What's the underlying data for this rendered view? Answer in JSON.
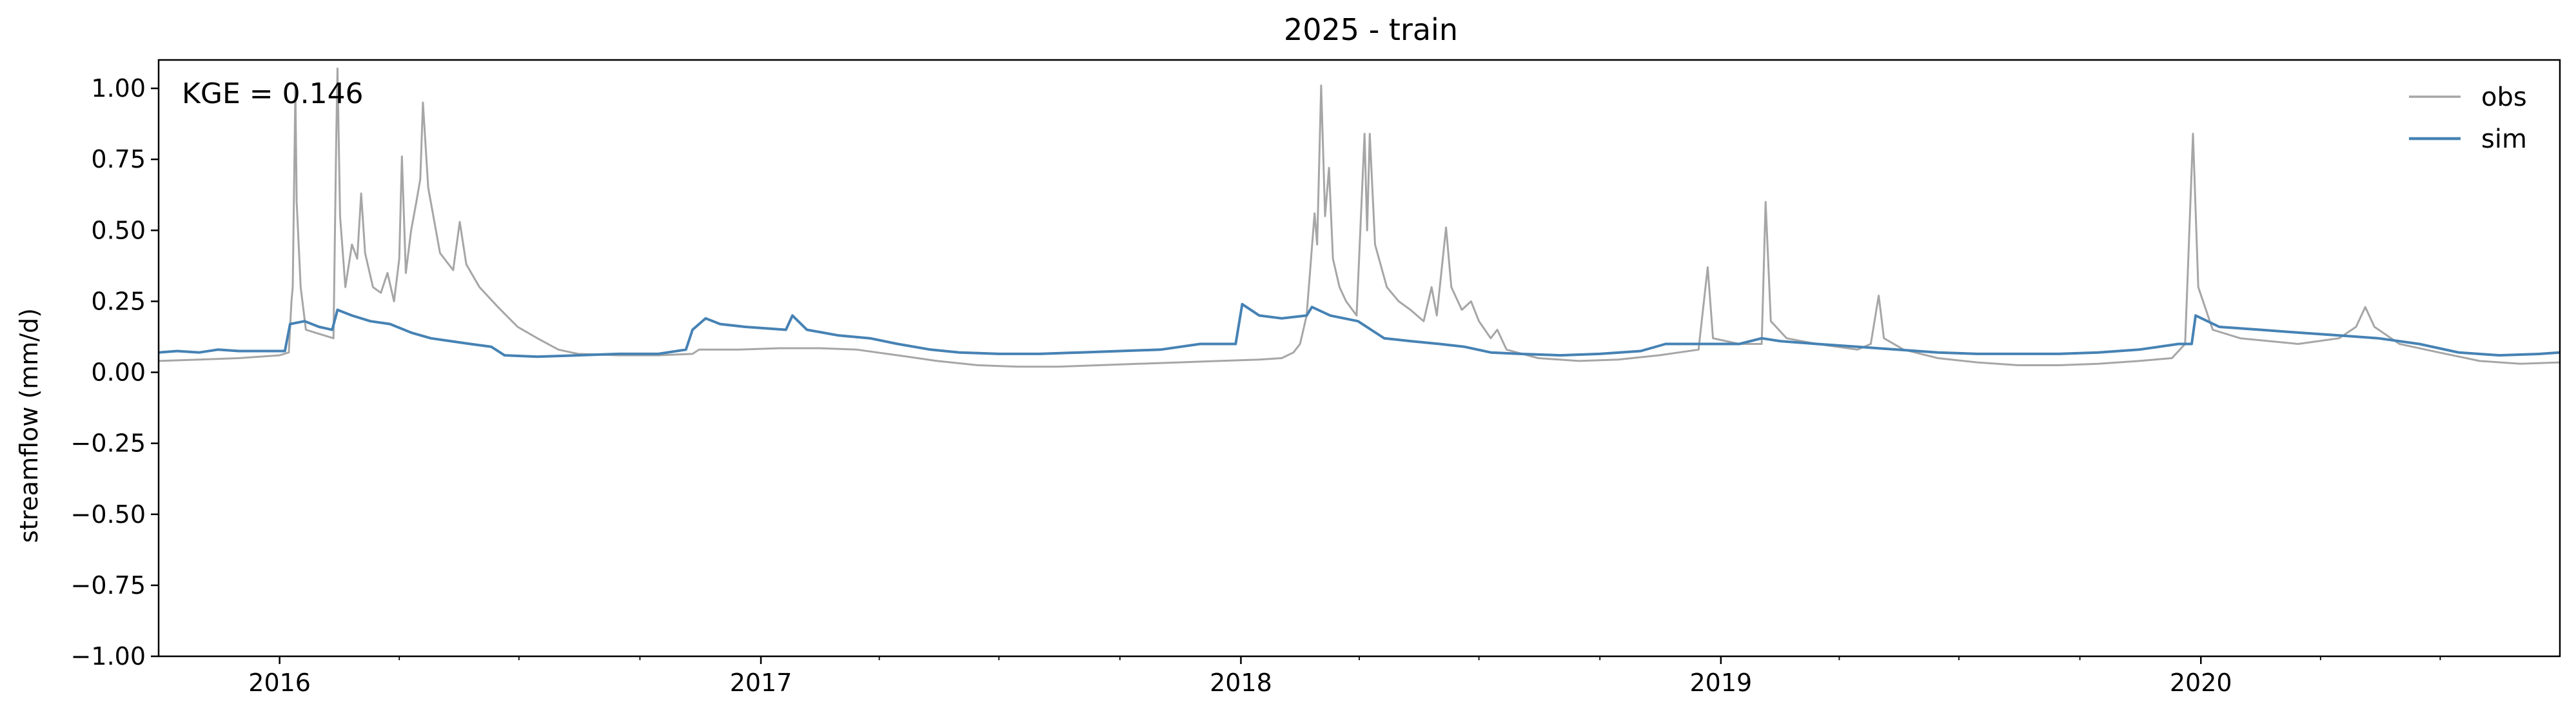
{
  "chart_data": {
    "type": "line",
    "title": "2025 - train",
    "xlabel": "",
    "ylabel": "streamflow (mm/d)",
    "x_range": [
      "2015-10-01",
      "2020-09-30"
    ],
    "ylim": [
      -1.0,
      1.1
    ],
    "grid": false,
    "legend_position": "top-right",
    "annotation": "KGE = 0.146",
    "x_ticks": [
      {
        "date": "2016-01-01",
        "label": "2016"
      },
      {
        "date": "2017-01-01",
        "label": "2017"
      },
      {
        "date": "2018-01-01",
        "label": "2018"
      },
      {
        "date": "2019-01-01",
        "label": "2019"
      },
      {
        "date": "2020-01-01",
        "label": "2020"
      }
    ],
    "x_minor_ticks": [
      "2016-04-01",
      "2016-07-01",
      "2016-10-01",
      "2017-04-01",
      "2017-07-01",
      "2017-10-01",
      "2018-04-01",
      "2018-07-01",
      "2018-10-01",
      "2019-04-01",
      "2019-07-01",
      "2019-10-01",
      "2020-04-01",
      "2020-07-01"
    ],
    "y_ticks": [
      {
        "value": 1.0,
        "label": "1.00"
      },
      {
        "value": 0.75,
        "label": "0.75"
      },
      {
        "value": 0.5,
        "label": "0.50"
      },
      {
        "value": 0.25,
        "label": "0.25"
      },
      {
        "value": 0.0,
        "label": "0.00"
      },
      {
        "value": -0.25,
        "label": "−0.25"
      },
      {
        "value": -0.5,
        "label": "−0.50"
      },
      {
        "value": -0.75,
        "label": "−0.75"
      },
      {
        "value": -1.0,
        "label": "−1.00"
      }
    ],
    "series": [
      {
        "name": "obs",
        "color": "#a6a6a6",
        "points": [
          [
            "2015-10-01",
            0.04
          ],
          [
            "2015-11-01",
            0.045
          ],
          [
            "2015-12-01",
            0.05
          ],
          [
            "2016-01-01",
            0.06
          ],
          [
            "2016-01-08",
            0.07
          ],
          [
            "2016-01-10",
            0.25
          ],
          [
            "2016-01-11",
            0.3
          ],
          [
            "2016-01-13",
            1.0
          ],
          [
            "2016-01-14",
            0.6
          ],
          [
            "2016-01-17",
            0.3
          ],
          [
            "2016-01-21",
            0.15
          ],
          [
            "2016-01-28",
            0.14
          ],
          [
            "2016-02-04",
            0.13
          ],
          [
            "2016-02-11",
            0.12
          ],
          [
            "2016-02-13",
            0.8
          ],
          [
            "2016-02-14",
            1.07
          ],
          [
            "2016-02-16",
            0.55
          ],
          [
            "2016-02-20",
            0.3
          ],
          [
            "2016-02-25",
            0.45
          ],
          [
            "2016-02-29",
            0.4
          ],
          [
            "2016-03-03",
            0.63
          ],
          [
            "2016-03-06",
            0.42
          ],
          [
            "2016-03-12",
            0.3
          ],
          [
            "2016-03-18",
            0.28
          ],
          [
            "2016-03-23",
            0.35
          ],
          [
            "2016-03-28",
            0.25
          ],
          [
            "2016-04-01",
            0.4
          ],
          [
            "2016-04-03",
            0.76
          ],
          [
            "2016-04-06",
            0.35
          ],
          [
            "2016-04-10",
            0.5
          ],
          [
            "2016-04-14",
            0.6
          ],
          [
            "2016-04-17",
            0.68
          ],
          [
            "2016-04-19",
            0.95
          ],
          [
            "2016-04-23",
            0.65
          ],
          [
            "2016-05-02",
            0.42
          ],
          [
            "2016-05-12",
            0.36
          ],
          [
            "2016-05-17",
            0.53
          ],
          [
            "2016-05-22",
            0.38
          ],
          [
            "2016-06-01",
            0.3
          ],
          [
            "2016-06-15",
            0.23
          ],
          [
            "2016-06-30",
            0.16
          ],
          [
            "2016-07-15",
            0.12
          ],
          [
            "2016-07-31",
            0.08
          ],
          [
            "2016-08-15",
            0.065
          ],
          [
            "2016-09-15",
            0.06
          ],
          [
            "2016-10-15",
            0.06
          ],
          [
            "2016-11-10",
            0.065
          ],
          [
            "2016-11-15",
            0.08
          ],
          [
            "2016-12-15",
            0.08
          ],
          [
            "2017-01-15",
            0.085
          ],
          [
            "2017-02-15",
            0.085
          ],
          [
            "2017-03-15",
            0.08
          ],
          [
            "2017-04-15",
            0.06
          ],
          [
            "2017-05-15",
            0.04
          ],
          [
            "2017-06-15",
            0.025
          ],
          [
            "2017-07-15",
            0.02
          ],
          [
            "2017-08-15",
            0.02
          ],
          [
            "2017-09-15",
            0.025
          ],
          [
            "2017-10-15",
            0.03
          ],
          [
            "2017-11-15",
            0.035
          ],
          [
            "2017-12-15",
            0.04
          ],
          [
            "2018-01-15",
            0.045
          ],
          [
            "2018-02-01",
            0.05
          ],
          [
            "2018-02-10",
            0.07
          ],
          [
            "2018-02-15",
            0.1
          ],
          [
            "2018-02-20",
            0.2
          ],
          [
            "2018-02-26",
            0.56
          ],
          [
            "2018-02-28",
            0.45
          ],
          [
            "2018-03-03",
            1.01
          ],
          [
            "2018-03-06",
            0.55
          ],
          [
            "2018-03-09",
            0.72
          ],
          [
            "2018-03-12",
            0.4
          ],
          [
            "2018-03-17",
            0.3
          ],
          [
            "2018-03-22",
            0.25
          ],
          [
            "2018-03-30",
            0.2
          ],
          [
            "2018-04-05",
            0.84
          ],
          [
            "2018-04-07",
            0.5
          ],
          [
            "2018-04-09",
            0.84
          ],
          [
            "2018-04-13",
            0.45
          ],
          [
            "2018-04-22",
            0.3
          ],
          [
            "2018-05-01",
            0.25
          ],
          [
            "2018-05-10",
            0.22
          ],
          [
            "2018-05-20",
            0.18
          ],
          [
            "2018-05-26",
            0.3
          ],
          [
            "2018-05-30",
            0.2
          ],
          [
            "2018-06-06",
            0.51
          ],
          [
            "2018-06-10",
            0.3
          ],
          [
            "2018-06-18",
            0.22
          ],
          [
            "2018-06-25",
            0.25
          ],
          [
            "2018-07-01",
            0.18
          ],
          [
            "2018-07-10",
            0.12
          ],
          [
            "2018-07-15",
            0.15
          ],
          [
            "2018-07-22",
            0.08
          ],
          [
            "2018-08-15",
            0.05
          ],
          [
            "2018-09-15",
            0.04
          ],
          [
            "2018-10-15",
            0.045
          ],
          [
            "2018-11-15",
            0.06
          ],
          [
            "2018-12-15",
            0.08
          ],
          [
            "2018-12-22",
            0.37
          ],
          [
            "2018-12-26",
            0.12
          ],
          [
            "2019-01-15",
            0.1
          ],
          [
            "2019-02-01",
            0.1
          ],
          [
            "2019-02-04",
            0.6
          ],
          [
            "2019-02-08",
            0.18
          ],
          [
            "2019-02-20",
            0.12
          ],
          [
            "2019-03-15",
            0.1
          ],
          [
            "2019-04-15",
            0.08
          ],
          [
            "2019-04-25",
            0.1
          ],
          [
            "2019-05-01",
            0.27
          ],
          [
            "2019-05-05",
            0.12
          ],
          [
            "2019-05-20",
            0.08
          ],
          [
            "2019-06-15",
            0.05
          ],
          [
            "2019-07-15",
            0.035
          ],
          [
            "2019-08-15",
            0.025
          ],
          [
            "2019-09-15",
            0.025
          ],
          [
            "2019-10-15",
            0.03
          ],
          [
            "2019-11-15",
            0.04
          ],
          [
            "2019-12-10",
            0.05
          ],
          [
            "2019-12-20",
            0.1
          ],
          [
            "2019-12-26",
            0.84
          ],
          [
            "2019-12-30",
            0.3
          ],
          [
            "2020-01-10",
            0.15
          ],
          [
            "2020-01-31",
            0.12
          ],
          [
            "2020-03-15",
            0.1
          ],
          [
            "2020-04-15",
            0.12
          ],
          [
            "2020-04-28",
            0.16
          ],
          [
            "2020-05-05",
            0.23
          ],
          [
            "2020-05-12",
            0.16
          ],
          [
            "2020-05-31",
            0.1
          ],
          [
            "2020-06-30",
            0.07
          ],
          [
            "2020-07-31",
            0.04
          ],
          [
            "2020-08-31",
            0.03
          ],
          [
            "2020-09-30",
            0.035
          ]
        ]
      },
      {
        "name": "sim",
        "color": "#4682b4",
        "points": [
          [
            "2015-10-01",
            0.07
          ],
          [
            "2015-10-15",
            0.075
          ],
          [
            "2015-11-01",
            0.07
          ],
          [
            "2015-11-15",
            0.08
          ],
          [
            "2015-12-01",
            0.075
          ],
          [
            "2015-12-15",
            0.075
          ],
          [
            "2016-01-05",
            0.075
          ],
          [
            "2016-01-09",
            0.17
          ],
          [
            "2016-01-20",
            0.18
          ],
          [
            "2016-01-31",
            0.16
          ],
          [
            "2016-02-10",
            0.15
          ],
          [
            "2016-02-14",
            0.22
          ],
          [
            "2016-02-25",
            0.2
          ],
          [
            "2016-03-10",
            0.18
          ],
          [
            "2016-03-25",
            0.17
          ],
          [
            "2016-04-10",
            0.14
          ],
          [
            "2016-04-25",
            0.12
          ],
          [
            "2016-05-10",
            0.11
          ],
          [
            "2016-05-25",
            0.1
          ],
          [
            "2016-06-10",
            0.09
          ],
          [
            "2016-06-20",
            0.06
          ],
          [
            "2016-07-15",
            0.055
          ],
          [
            "2016-08-15",
            0.06
          ],
          [
            "2016-09-15",
            0.065
          ],
          [
            "2016-10-15",
            0.065
          ],
          [
            "2016-11-05",
            0.08
          ],
          [
            "2016-11-10",
            0.15
          ],
          [
            "2016-11-20",
            0.19
          ],
          [
            "2016-12-01",
            0.17
          ],
          [
            "2016-12-20",
            0.16
          ],
          [
            "2017-01-20",
            0.15
          ],
          [
            "2017-01-25",
            0.2
          ],
          [
            "2017-02-05",
            0.15
          ],
          [
            "2017-03-01",
            0.13
          ],
          [
            "2017-03-25",
            0.12
          ],
          [
            "2017-04-15",
            0.1
          ],
          [
            "2017-05-10",
            0.08
          ],
          [
            "2017-06-01",
            0.07
          ],
          [
            "2017-07-01",
            0.065
          ],
          [
            "2017-08-01",
            0.065
          ],
          [
            "2017-09-01",
            0.07
          ],
          [
            "2017-10-01",
            0.075
          ],
          [
            "2017-11-01",
            0.08
          ],
          [
            "2017-12-01",
            0.1
          ],
          [
            "2017-12-28",
            0.1
          ],
          [
            "2018-01-02",
            0.24
          ],
          [
            "2018-01-15",
            0.2
          ],
          [
            "2018-02-01",
            0.19
          ],
          [
            "2018-02-20",
            0.2
          ],
          [
            "2018-02-24",
            0.23
          ],
          [
            "2018-03-10",
            0.2
          ],
          [
            "2018-03-31",
            0.18
          ],
          [
            "2018-04-10",
            0.15
          ],
          [
            "2018-04-20",
            0.12
          ],
          [
            "2018-05-10",
            0.11
          ],
          [
            "2018-06-01",
            0.1
          ],
          [
            "2018-06-20",
            0.09
          ],
          [
            "2018-07-10",
            0.07
          ],
          [
            "2018-08-01",
            0.065
          ],
          [
            "2018-09-01",
            0.06
          ],
          [
            "2018-10-01",
            0.065
          ],
          [
            "2018-11-01",
            0.075
          ],
          [
            "2018-11-20",
            0.1
          ],
          [
            "2018-12-15",
            0.1
          ],
          [
            "2019-01-15",
            0.1
          ],
          [
            "2019-02-01",
            0.12
          ],
          [
            "2019-02-15",
            0.11
          ],
          [
            "2019-03-15",
            0.1
          ],
          [
            "2019-04-15",
            0.09
          ],
          [
            "2019-05-15",
            0.08
          ],
          [
            "2019-06-15",
            0.07
          ],
          [
            "2019-07-15",
            0.065
          ],
          [
            "2019-08-15",
            0.065
          ],
          [
            "2019-09-15",
            0.065
          ],
          [
            "2019-10-15",
            0.07
          ],
          [
            "2019-11-15",
            0.08
          ],
          [
            "2019-12-15",
            0.1
          ],
          [
            "2019-12-25",
            0.1
          ],
          [
            "2019-12-28",
            0.2
          ],
          [
            "2020-01-15",
            0.16
          ],
          [
            "2020-02-15",
            0.15
          ],
          [
            "2020-03-15",
            0.14
          ],
          [
            "2020-04-15",
            0.13
          ],
          [
            "2020-05-15",
            0.12
          ],
          [
            "2020-06-15",
            0.1
          ],
          [
            "2020-07-15",
            0.07
          ],
          [
            "2020-08-15",
            0.06
          ],
          [
            "2020-09-15",
            0.065
          ],
          [
            "2020-09-30",
            0.07
          ]
        ]
      }
    ]
  }
}
